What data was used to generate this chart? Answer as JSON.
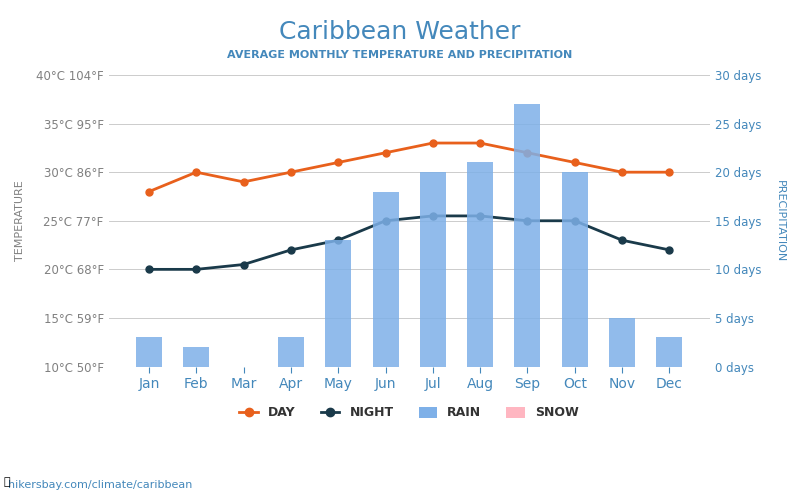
{
  "title": "Caribbean Weather",
  "subtitle": "AVERAGE MONTHLY TEMPERATURE AND PRECIPITATION",
  "months": [
    "Jan",
    "Feb",
    "Mar",
    "Apr",
    "May",
    "Jun",
    "Jul",
    "Aug",
    "Sep",
    "Oct",
    "Nov",
    "Dec"
  ],
  "day_temp": [
    28,
    30,
    29,
    30,
    31,
    32,
    33,
    33,
    32,
    31,
    30,
    30
  ],
  "night_temp": [
    20,
    20,
    20.5,
    22,
    23,
    25,
    25.5,
    25.5,
    25,
    25,
    23,
    22
  ],
  "rain_days": [
    3,
    2,
    0,
    3,
    13,
    18,
    20,
    21,
    27,
    20,
    5,
    3
  ],
  "snow_days": [
    0,
    0,
    0,
    0,
    0,
    0,
    0,
    0,
    0,
    0,
    0,
    0
  ],
  "temp_ylim": [
    10,
    40
  ],
  "precip_ylim": [
    0,
    30
  ],
  "temp_ticks": [
    10,
    15,
    20,
    25,
    30,
    35,
    40
  ],
  "temp_tick_labels_left": [
    "10°C 50°F",
    "15°C 59°F",
    "20°C 68°F",
    "25°C 77°F",
    "30°C 86°F",
    "35°C 95°F",
    "40°C 104°F"
  ],
  "precip_ticks": [
    0,
    5,
    10,
    15,
    20,
    25,
    30
  ],
  "precip_tick_labels_right": [
    "0 days",
    "5 days",
    "10 days",
    "15 days",
    "20 days",
    "25 days",
    "30 days"
  ],
  "bar_color": "#7EB0E8",
  "day_line_color": "#E8601C",
  "night_line_color": "#1A3A4A",
  "title_color": "#4488BB",
  "subtitle_color": "#4488BB",
  "left_tick_color_cold": "#4CAF50",
  "left_tick_color_warm": "#E91E8C",
  "right_tick_color": "#4488BB",
  "xlabel_color": "#4488BB",
  "watermark": "hikersbay.com/climate/caribbean",
  "bg_color": "#FFFFFF",
  "grid_color": "#CCCCCC"
}
